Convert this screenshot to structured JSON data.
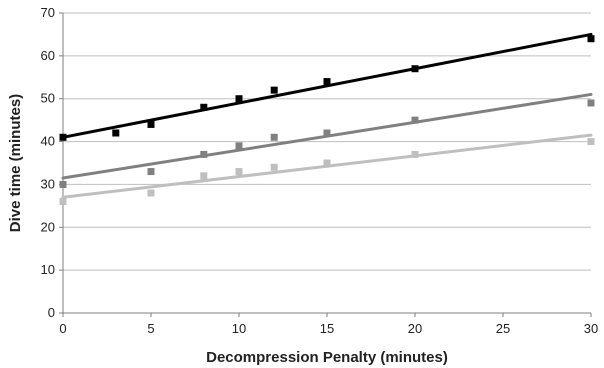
{
  "chart_data": {
    "type": "scatter",
    "title": "",
    "xlabel": "Decompression Penalty (minutes)",
    "ylabel": "Dive time (minutes)",
    "xlim": [
      0,
      30
    ],
    "ylim": [
      0,
      70
    ],
    "x_ticks": [
      0,
      5,
      10,
      15,
      20,
      25,
      30
    ],
    "y_ticks": [
      0,
      10,
      20,
      30,
      40,
      50,
      60,
      70
    ],
    "grid": "horizontal",
    "legend": "none",
    "series": [
      {
        "color": "#000000",
        "points": [
          [
            0,
            41
          ],
          [
            3,
            42
          ],
          [
            5,
            44
          ],
          [
            8,
            48
          ],
          [
            10,
            50
          ],
          [
            12,
            52
          ],
          [
            15,
            54
          ],
          [
            20,
            57
          ],
          [
            30,
            64
          ]
        ],
        "trendline": [
          [
            0,
            41
          ],
          [
            30,
            65
          ]
        ]
      },
      {
        "color": "#808080",
        "points": [
          [
            0,
            30
          ],
          [
            5,
            33
          ],
          [
            8,
            37
          ],
          [
            10,
            39
          ],
          [
            12,
            41
          ],
          [
            15,
            42
          ],
          [
            20,
            45
          ],
          [
            30,
            49
          ]
        ],
        "trendline": [
          [
            0,
            31.5
          ],
          [
            30,
            51
          ]
        ]
      },
      {
        "color": "#bfbfbf",
        "points": [
          [
            0,
            26
          ],
          [
            5,
            28
          ],
          [
            8,
            32
          ],
          [
            10,
            33
          ],
          [
            12,
            34
          ],
          [
            15,
            35
          ],
          [
            20,
            37
          ],
          [
            30,
            40
          ]
        ],
        "trendline": [
          [
            0,
            27
          ],
          [
            30,
            41.5
          ]
        ]
      }
    ]
  }
}
